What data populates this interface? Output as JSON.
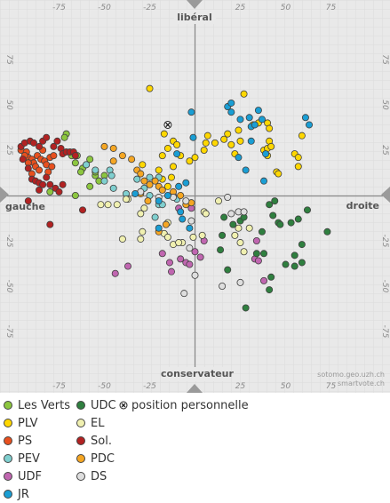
{
  "chart_data": {
    "type": "scatter",
    "title": "",
    "axis_labels": {
      "top": "libéral",
      "bottom": "conservateur",
      "left": "gauche",
      "right": "droite"
    },
    "credit": [
      "sotomo.geo.uzh.ch",
      "smartvote.ch"
    ],
    "xlim": [
      -100,
      100
    ],
    "ylim": [
      -100,
      100
    ],
    "x_ticks": [
      "-75",
      "-50",
      "-25",
      "25",
      "50",
      "75"
    ],
    "y_ticks": [
      "75",
      "50",
      "25",
      "-25",
      "-50",
      "-75"
    ],
    "grid": true,
    "legend_position": "bottom",
    "personal_position": {
      "label": "position personnelle",
      "x": -15,
      "y": 39
    },
    "series": [
      {
        "name": "Les Verts",
        "color": "#8cc63f",
        "points": [
          [
            -71,
            34
          ],
          [
            -72,
            32
          ],
          [
            -68,
            22
          ],
          [
            -66,
            18
          ],
          [
            -65,
            22
          ],
          [
            -62,
            15
          ],
          [
            -60,
            17
          ],
          [
            -63,
            13
          ],
          [
            -58,
            20
          ],
          [
            -55,
            11
          ],
          [
            -53,
            8
          ],
          [
            -50,
            11
          ],
          [
            -58,
            5
          ],
          [
            -66,
            0
          ],
          [
            -80,
            2
          ],
          [
            -55,
            13
          ]
        ]
      },
      {
        "name": "PLV",
        "color": "#ffd700",
        "points": [
          [
            -25,
            59
          ],
          [
            -17,
            34
          ],
          [
            -12,
            30
          ],
          [
            -10,
            28
          ],
          [
            -15,
            26
          ],
          [
            -8,
            22
          ],
          [
            -18,
            22
          ],
          [
            -12,
            16
          ],
          [
            -20,
            14
          ],
          [
            -18,
            9
          ],
          [
            -13,
            10
          ],
          [
            -15,
            5
          ],
          [
            -3,
            19
          ],
          [
            0,
            21
          ],
          [
            5,
            25
          ],
          [
            7,
            33
          ],
          [
            11,
            29
          ],
          [
            16,
            31
          ],
          [
            18,
            34
          ],
          [
            20,
            28
          ],
          [
            22,
            23
          ],
          [
            25,
            30
          ],
          [
            24,
            36
          ],
          [
            27,
            56
          ],
          [
            32,
            39
          ],
          [
            35,
            40
          ],
          [
            40,
            40
          ],
          [
            40,
            22
          ],
          [
            41,
            37
          ],
          [
            38,
            25
          ],
          [
            40,
            26
          ],
          [
            41,
            30
          ],
          [
            42,
            27
          ],
          [
            45,
            13
          ],
          [
            46,
            12
          ],
          [
            55,
            23
          ],
          [
            57,
            16
          ],
          [
            57,
            21
          ],
          [
            59,
            33
          ],
          [
            -29,
            17
          ],
          [
            6,
            29
          ]
        ]
      },
      {
        "name": "PS",
        "color": "#e8501e",
        "points": [
          [
            -96,
            25
          ],
          [
            -93,
            24
          ],
          [
            -92,
            21
          ],
          [
            -90,
            20
          ],
          [
            -89,
            18
          ],
          [
            -88,
            16
          ],
          [
            -87,
            22
          ],
          [
            -86,
            14
          ],
          [
            -85,
            20
          ],
          [
            -84,
            25
          ],
          [
            -83,
            19
          ],
          [
            -82,
            17
          ],
          [
            -81,
            13
          ],
          [
            -80,
            21
          ],
          [
            -79,
            16
          ],
          [
            -90,
            12
          ],
          [
            -92,
            18
          ],
          [
            -94,
            22
          ],
          [
            -78,
            22
          ]
        ]
      },
      {
        "name": "PEV",
        "color": "#7fcfcf",
        "points": [
          [
            -60,
            17
          ],
          [
            -55,
            14
          ],
          [
            -47,
            14
          ],
          [
            -46,
            11
          ],
          [
            -50,
            8
          ],
          [
            -45,
            4
          ],
          [
            -38,
            1
          ],
          [
            -30,
            2
          ],
          [
            -28,
            4
          ],
          [
            -32,
            9
          ],
          [
            -25,
            10
          ],
          [
            -20,
            10
          ],
          [
            -22,
            -12
          ],
          [
            -20,
            -5
          ],
          [
            -25,
            0
          ],
          [
            -18,
            -5
          ],
          [
            -10,
            -2
          ]
        ]
      },
      {
        "name": "UDF",
        "color": "#c066b0",
        "points": [
          [
            -44,
            -43
          ],
          [
            -37,
            -39
          ],
          [
            -18,
            -32
          ],
          [
            -14,
            -37
          ],
          [
            -13,
            -42
          ],
          [
            -8,
            -35
          ],
          [
            -5,
            -37
          ],
          [
            -3,
            -38
          ],
          [
            0,
            -31
          ],
          [
            3,
            -34
          ],
          [
            5,
            -25
          ],
          [
            33,
            -35
          ],
          [
            35,
            -36
          ],
          [
            38,
            -47
          ],
          [
            34,
            -25
          ],
          [
            -2,
            -7
          ],
          [
            -9,
            -7
          ],
          [
            -12,
            0
          ]
        ]
      },
      {
        "name": "UDC",
        "color": "#2f7f3f",
        "points": [
          [
            41,
            -5
          ],
          [
            44,
            -3
          ],
          [
            43,
            -11
          ],
          [
            46,
            -15
          ],
          [
            47,
            -16
          ],
          [
            53,
            -15
          ],
          [
            57,
            -13
          ],
          [
            62,
            -8
          ],
          [
            73,
            -20
          ],
          [
            25,
            -14
          ],
          [
            27,
            -12
          ],
          [
            21,
            -16
          ],
          [
            16,
            -12
          ],
          [
            15,
            -22
          ],
          [
            14,
            -30
          ],
          [
            18,
            -41
          ],
          [
            28,
            -62
          ],
          [
            34,
            -32
          ],
          [
            38,
            -32
          ],
          [
            41,
            -52
          ],
          [
            42,
            -45
          ],
          [
            50,
            -38
          ],
          [
            55,
            -39
          ],
          [
            55,
            -33
          ],
          [
            59,
            -27
          ],
          [
            59,
            -37
          ],
          [
            37,
            -20
          ]
        ]
      },
      {
        "name": "EL",
        "color": "#f0f0b0",
        "points": [
          [
            -52,
            -5
          ],
          [
            -48,
            -5
          ],
          [
            -43,
            -5
          ],
          [
            -37,
            -2
          ],
          [
            -38,
            -2
          ],
          [
            -28,
            -7
          ],
          [
            -29,
            -20
          ],
          [
            -15,
            -15
          ],
          [
            -17,
            -21
          ],
          [
            -15,
            -23
          ],
          [
            -12,
            -27
          ],
          [
            -7,
            -26
          ],
          [
            -9,
            -26
          ],
          [
            -1,
            -23
          ],
          [
            4,
            -22
          ],
          [
            5,
            -9
          ],
          [
            6,
            -10
          ],
          [
            13,
            -3
          ],
          [
            22,
            -22
          ],
          [
            24,
            -18
          ],
          [
            25,
            -26
          ],
          [
            27,
            -31
          ],
          [
            30,
            -18
          ],
          [
            -30,
            -24
          ],
          [
            -40,
            -24
          ],
          [
            -30,
            -10
          ]
        ]
      },
      {
        "name": "Sol.",
        "color": "#b22222",
        "points": [
          [
            -96,
            27
          ],
          [
            -94,
            29
          ],
          [
            -91,
            30
          ],
          [
            -89,
            29
          ],
          [
            -86,
            27
          ],
          [
            -84,
            30
          ],
          [
            -82,
            32
          ],
          [
            -78,
            27
          ],
          [
            -76,
            30
          ],
          [
            -74,
            26
          ],
          [
            -73,
            23
          ],
          [
            -71,
            24
          ],
          [
            -69,
            24
          ],
          [
            -67,
            24
          ],
          [
            -66,
            22
          ],
          [
            -95,
            20
          ],
          [
            -92,
            15
          ],
          [
            -90,
            9
          ],
          [
            -88,
            8
          ],
          [
            -86,
            7
          ],
          [
            -84,
            6
          ],
          [
            -82,
            10
          ],
          [
            -80,
            6
          ],
          [
            -77,
            4
          ],
          [
            -75,
            2
          ],
          [
            -73,
            6
          ],
          [
            -62,
            -8
          ],
          [
            -80,
            -16
          ],
          [
            -92,
            -3
          ],
          [
            -86,
            3
          ]
        ]
      },
      {
        "name": "PDC",
        "color": "#f5a623",
        "points": [
          [
            -50,
            27
          ],
          [
            -45,
            26
          ],
          [
            -45,
            19
          ],
          [
            -40,
            22
          ],
          [
            -35,
            20
          ],
          [
            -32,
            14
          ],
          [
            -30,
            12
          ],
          [
            -28,
            8
          ],
          [
            -25,
            6
          ],
          [
            -22,
            8
          ],
          [
            -20,
            5
          ],
          [
            -18,
            3
          ],
          [
            -12,
            2
          ],
          [
            -8,
            0
          ],
          [
            -5,
            -5
          ],
          [
            -2,
            -4
          ],
          [
            -30,
            1
          ],
          [
            -26,
            -3
          ],
          [
            -16,
            -16
          ],
          [
            -20,
            -20
          ]
        ]
      },
      {
        "name": "DS",
        "color": "#dedede",
        "points": [
          [
            -30,
            2
          ],
          [
            -20,
            -1
          ],
          [
            -5,
            -3
          ],
          [
            -12,
            -1
          ],
          [
            -2,
            -14
          ],
          [
            -3,
            -29
          ],
          [
            0,
            -44
          ],
          [
            -6,
            -54
          ],
          [
            15,
            -50
          ],
          [
            25,
            -48
          ],
          [
            24,
            -9
          ],
          [
            27,
            -9
          ],
          [
            18,
            -1
          ],
          [
            20,
            -10
          ]
        ]
      },
      {
        "name": "JR",
        "color": "#1a9ed4",
        "points": [
          [
            -2,
            46
          ],
          [
            -1,
            32
          ],
          [
            -5,
            7
          ],
          [
            -20,
            -18
          ],
          [
            -9,
            5
          ],
          [
            18,
            49
          ],
          [
            20,
            51
          ],
          [
            20,
            46
          ],
          [
            24,
            21
          ],
          [
            28,
            14
          ],
          [
            30,
            43
          ],
          [
            31,
            38
          ],
          [
            33,
            39
          ],
          [
            35,
            47
          ],
          [
            37,
            42
          ],
          [
            39,
            23
          ],
          [
            38,
            8
          ],
          [
            25,
            42
          ],
          [
            31,
            30
          ],
          [
            61,
            43
          ],
          [
            63,
            39
          ],
          [
            -10,
            23
          ],
          [
            -7,
            -13
          ],
          [
            -3,
            -18
          ],
          [
            -8,
            -9
          ],
          [
            -15,
            0
          ],
          [
            -33,
            1
          ],
          [
            -20,
            -3
          ]
        ]
      }
    ]
  }
}
